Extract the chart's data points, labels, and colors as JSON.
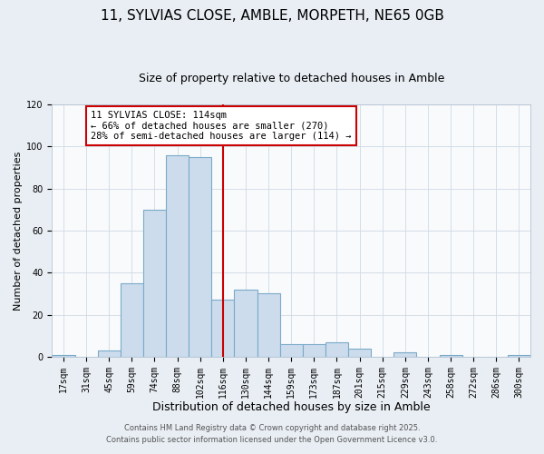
{
  "title": "11, SYLVIAS CLOSE, AMBLE, MORPETH, NE65 0GB",
  "subtitle": "Size of property relative to detached houses in Amble",
  "xlabel": "Distribution of detached houses by size in Amble",
  "ylabel": "Number of detached properties",
  "bin_labels": [
    "17sqm",
    "31sqm",
    "45sqm",
    "59sqm",
    "74sqm",
    "88sqm",
    "102sqm",
    "116sqm",
    "130sqm",
    "144sqm",
    "159sqm",
    "173sqm",
    "187sqm",
    "201sqm",
    "215sqm",
    "229sqm",
    "243sqm",
    "258sqm",
    "272sqm",
    "286sqm",
    "300sqm"
  ],
  "bar_values": [
    1,
    0,
    3,
    35,
    70,
    96,
    95,
    27,
    32,
    30,
    6,
    6,
    7,
    4,
    0,
    2,
    0,
    1,
    0,
    0,
    1
  ],
  "bar_color": "#ccdcec",
  "bar_edge_color": "#7aaac8",
  "vline_x_index": 7,
  "vline_color": "#cc0000",
  "annotation_line1": "11 SYLVIAS CLOSE: 114sqm",
  "annotation_line2": "← 66% of detached houses are smaller (270)",
  "annotation_line3": "28% of semi-detached houses are larger (114) →",
  "annotation_box_facecolor": "#ffffff",
  "annotation_box_edgecolor": "#cc0000",
  "ylim": [
    0,
    120
  ],
  "yticks": [
    0,
    20,
    40,
    60,
    80,
    100,
    120
  ],
  "footer_line1": "Contains HM Land Registry data © Crown copyright and database right 2025.",
  "footer_line2": "Contains public sector information licensed under the Open Government Licence v3.0.",
  "background_color": "#e8eef4",
  "plot_bg_color": "#f8fafc",
  "grid_color": "#d0dae4",
  "title_fontsize": 11,
  "subtitle_fontsize": 9,
  "xlabel_fontsize": 9,
  "ylabel_fontsize": 8,
  "tick_fontsize": 7,
  "annotation_fontsize": 7.5,
  "footer_fontsize": 6
}
